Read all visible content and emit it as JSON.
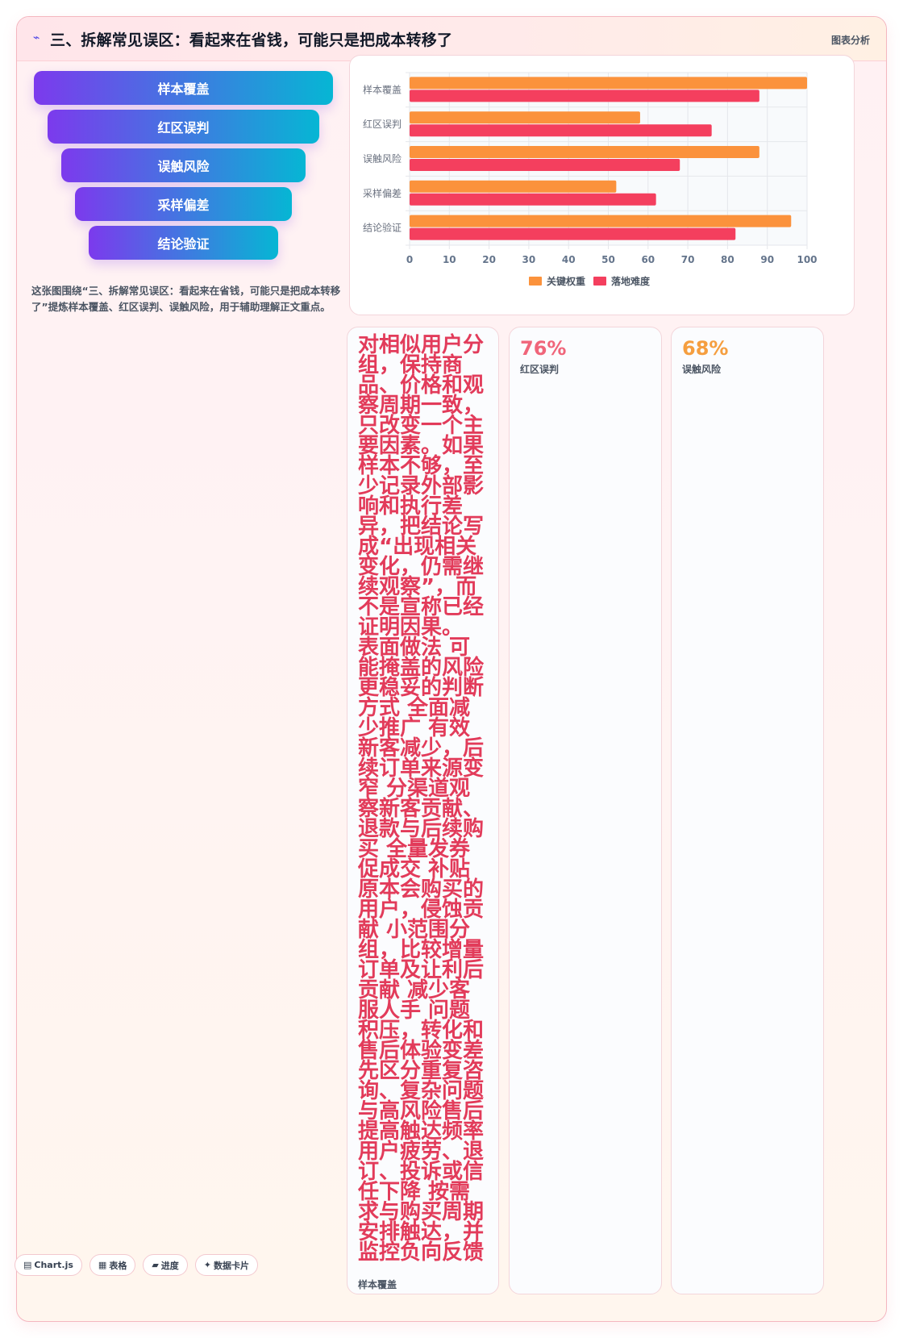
{
  "header": {
    "icon": "⌁",
    "title": "三、拆解常见误区：看起来在省钱，可能只是把成本转移了",
    "tag": "图表分析"
  },
  "funnel": [
    "样本覆盖",
    "红区误判",
    "误触风险",
    "采样偏差",
    "结论验证"
  ],
  "caption": "这张图围绕“三、拆解常见误区：看起来在省钱，可能只是把成本转移了”提炼样本覆盖、红区误判、误触风险，用于辅助理解正文重点。",
  "chart_data": {
    "type": "bar",
    "orientation": "horizontal",
    "categories": [
      "样本覆盖",
      "红区误判",
      "误触风险",
      "采样偏差",
      "结论验证"
    ],
    "series": [
      {
        "name": "关键权重",
        "color": "#fb923c",
        "values": [
          100,
          58,
          88,
          52,
          96
        ]
      },
      {
        "name": "落地难度",
        "color": "#f43f5e",
        "values": [
          88,
          76,
          68,
          62,
          82
        ]
      }
    ],
    "xlim": [
      0,
      100
    ],
    "xticks": [
      0,
      10,
      20,
      30,
      40,
      50,
      60,
      70,
      80,
      90,
      100
    ],
    "grid": true,
    "legend": "bottom"
  },
  "stats": [
    {
      "big_text": "对相似用户分组，保持商品、价格和观察周期一致，只改变一个主要因素。如果样本不够，至少记录外部影响和执行差异，把结论写成“出现相关变化，仍需继续观察”，而不是宣称已经证明因果。 表面做法 可能掩盖的风险 更稳妥的判断方式 全面减少推广 有效新客减少，后续订单来源变窄 分渠道观察新客贡献、退款与后续购买 全量发券促成交 补贴原本会购买的用户，侵蚀贡献 小范围分组，比较增量订单及让利后贡献 减少客服人手 问题积压，转化和售后体验变差 先区分重复咨询、复杂问题与高风险售后 提高触达频率 用户疲劳、退订、投诉或信任下降 按需求与购买周期安排触达，并监控负向反馈",
      "label": "样本覆盖"
    },
    {
      "value": "76%",
      "label": "红区误判",
      "color": "#f0657a"
    },
    {
      "value": "68%",
      "label": "误触风险",
      "color": "#f59e3f"
    }
  ],
  "chips": [
    {
      "icon": "▤",
      "label": "Chart.js"
    },
    {
      "icon": "▦",
      "label": "表格"
    },
    {
      "icon": "▰",
      "label": "进度"
    },
    {
      "icon": "✦",
      "label": "数据卡片"
    }
  ]
}
